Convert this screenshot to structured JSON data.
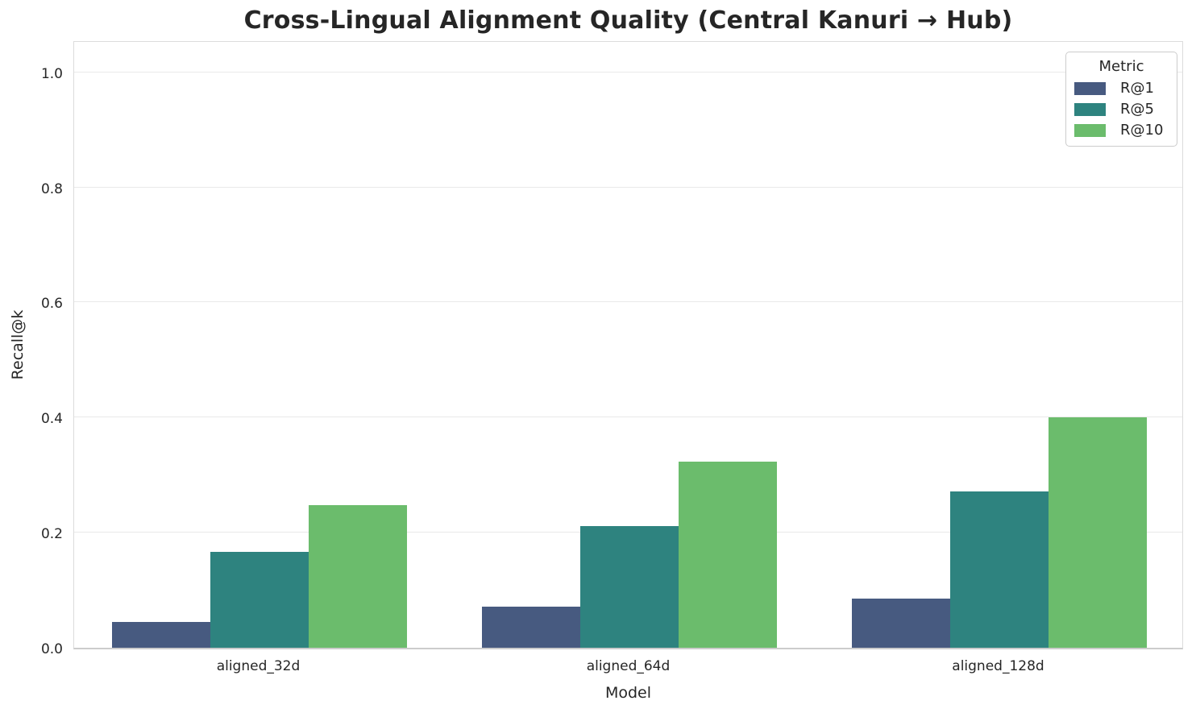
{
  "chart_data": {
    "type": "bar",
    "title": "Cross-Lingual Alignment Quality (Central Kanuri → Hub)",
    "xlabel": "Model",
    "ylabel": "Recall@k",
    "categories": [
      "aligned_32d",
      "aligned_64d",
      "aligned_128d"
    ],
    "series": [
      {
        "name": "R@1",
        "color": "#475a80",
        "values": [
          0.045,
          0.071,
          0.085
        ]
      },
      {
        "name": "R@5",
        "color": "#2e837f",
        "values": [
          0.166,
          0.212,
          0.272
        ]
      },
      {
        "name": "R@10",
        "color": "#6bbc6c",
        "values": [
          0.248,
          0.323,
          0.4
        ]
      }
    ],
    "ylim": [
      0,
      1.057
    ],
    "yticks": [
      0.0,
      0.2,
      0.4,
      0.6,
      0.8,
      1.0
    ],
    "ytick_labels": [
      "0.0",
      "0.2",
      "0.4",
      "0.6",
      "0.8",
      "1.0"
    ],
    "grid": true,
    "legend": {
      "title": "Metric",
      "position": "upper right"
    }
  }
}
